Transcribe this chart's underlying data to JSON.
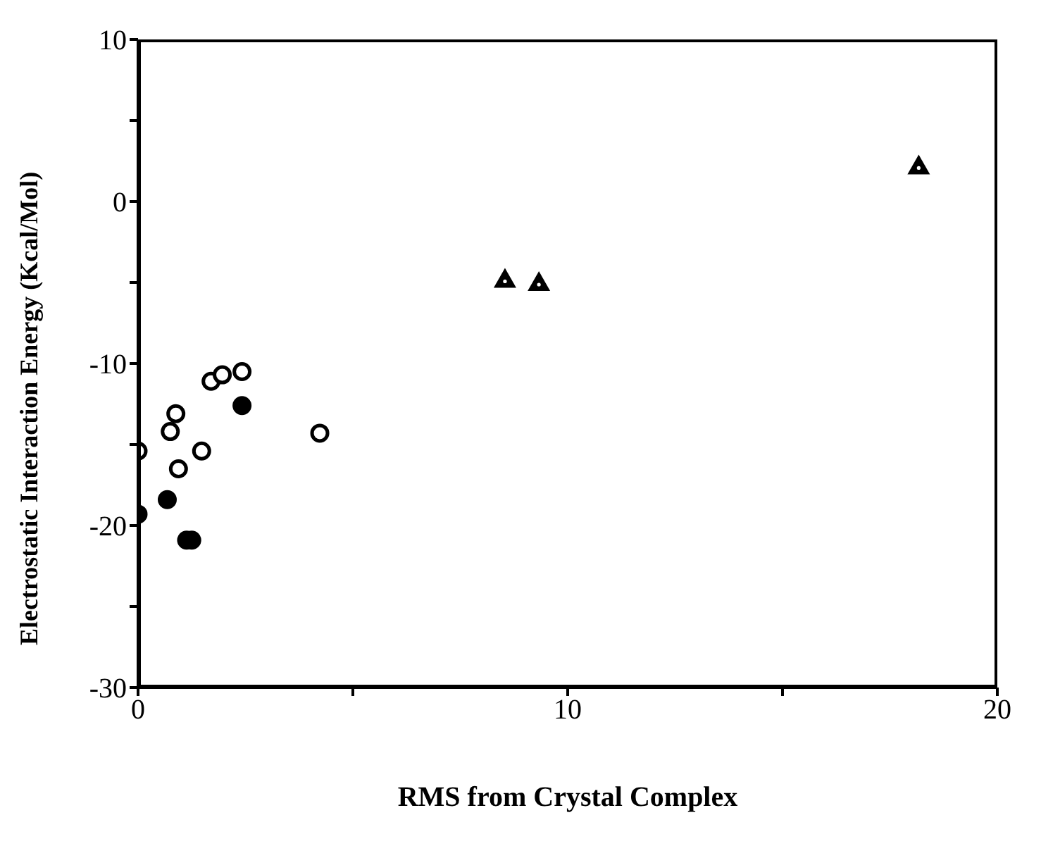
{
  "chart_data": {
    "type": "scatter",
    "xlabel": "RMS from Crystal Complex",
    "ylabel": "Electrostatic Interaction Energy (Kcal/Mol)",
    "xlim": [
      0,
      20
    ],
    "xticks": [
      0,
      {
        "value": 5,
        "label": null
      },
      10,
      {
        "value": 15,
        "label": null
      },
      20
    ],
    "ylim": [
      -30,
      10
    ],
    "yticks": [
      -30,
      {
        "value": -25,
        "label": null
      },
      -20,
      {
        "value": -15,
        "label": null
      },
      -10,
      {
        "value": -5,
        "label": null
      },
      0,
      {
        "value": 5,
        "label": null
      },
      10
    ],
    "grid": false,
    "legend": false,
    "series": [
      {
        "color": "#ffffff",
        "marker": "circle",
        "x": [
          0,
          0.75,
          0.88,
          0.94,
          1.48,
          1.7,
          1.96,
          2.42,
          4.23
        ],
        "values": [
          -15.4,
          -14.2,
          -13.1,
          -16.5,
          -15.4,
          -11.1,
          -10.7,
          -10.5,
          -14.3
        ]
      },
      {
        "color": "#000000",
        "marker": "circle",
        "x": [
          0,
          0.68,
          1.13,
          1.25,
          2.42
        ],
        "values": [
          -19.3,
          -18.4,
          -20.9,
          -20.9,
          -12.6
        ]
      },
      {
        "color": "#000000",
        "marker": "triangle",
        "x": [
          8.54,
          9.33,
          18.17
        ],
        "values": [
          -4.8,
          -5.0,
          2.2
        ]
      }
    ]
  }
}
